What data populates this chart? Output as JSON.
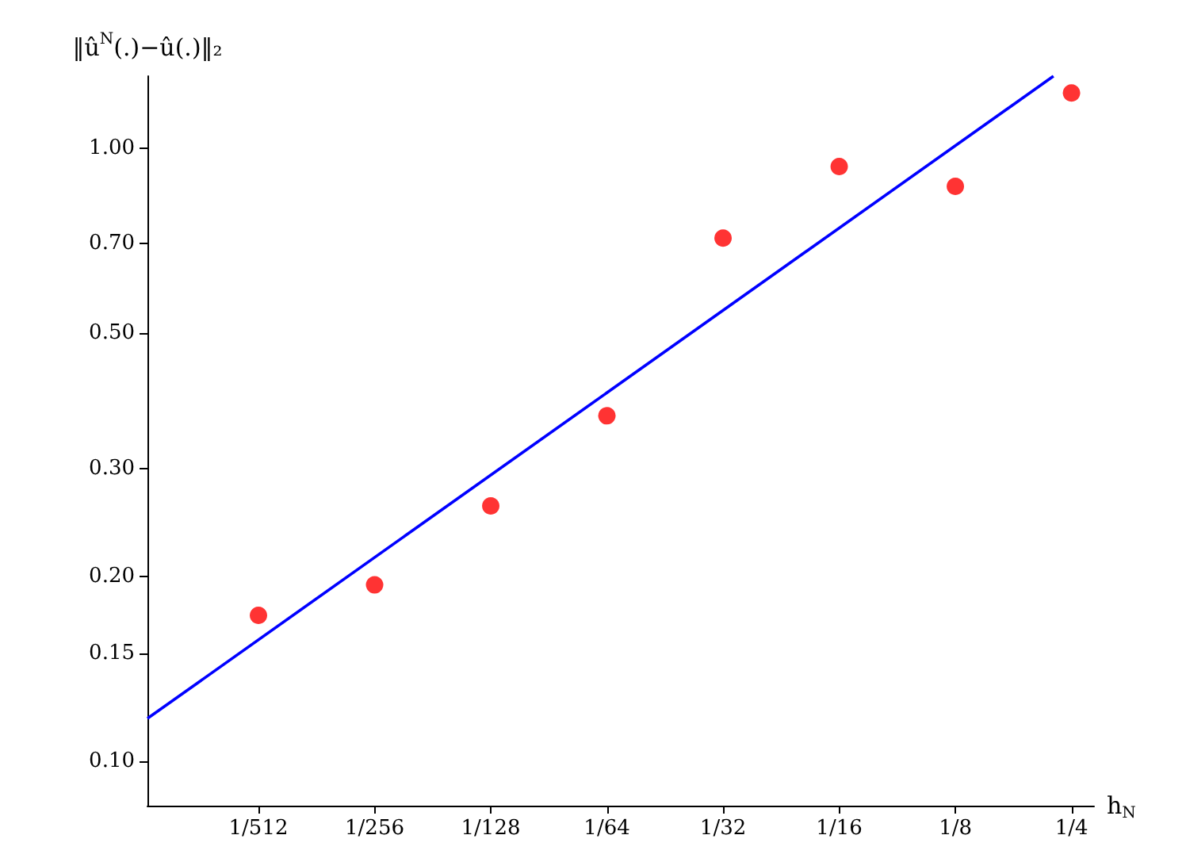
{
  "chart_data": {
    "type": "scatter",
    "xlabel": "h$_{N}$",
    "ylabel": "‖û$^{N}$(.)−û(.)‖₂",
    "log": "xy",
    "grid": false,
    "marker": "circle",
    "xlim": [
      0.001007,
      0.286
    ],
    "ylim": [
      0.0847,
      1.31
    ],
    "xticks": [
      {
        "value": 0.001953125,
        "label": "1/512"
      },
      {
        "value": 0.00390625,
        "label": "1/256"
      },
      {
        "value": 0.0078125,
        "label": "1/128"
      },
      {
        "value": 0.015625,
        "label": "1/64"
      },
      {
        "value": 0.03125,
        "label": "1/32"
      },
      {
        "value": 0.0625,
        "label": "1/16"
      },
      {
        "value": 0.125,
        "label": "1/8"
      },
      {
        "value": 0.25,
        "label": "1/4"
      }
    ],
    "yticks": [
      {
        "value": 0.1,
        "label": "0.10"
      },
      {
        "value": 0.15,
        "label": "0.15"
      },
      {
        "value": 0.2,
        "label": "0.20"
      },
      {
        "value": 0.3,
        "label": "0.30"
      },
      {
        "value": 0.5,
        "label": "0.50"
      },
      {
        "value": 0.7,
        "label": "0.70"
      },
      {
        "value": 1,
        "label": "1.00"
      }
    ],
    "series": [
      {
        "color": "#ff0000",
        "x": [
          0.001953125,
          0.00390625,
          0.0078125,
          0.015625,
          0.03125,
          0.0625,
          0.125,
          0.25
        ],
        "values": [
          0.173,
          0.194,
          0.261,
          0.366,
          0.713,
          0.933,
          0.866,
          1.23
        ]
      },
      {
        "type": "line",
        "color": "#0000ff",
        "marker": "none",
        "x": [
          0.001007,
          0.2245
        ],
        "values": [
          0.1175,
          1.31
        ]
      }
    ]
  }
}
